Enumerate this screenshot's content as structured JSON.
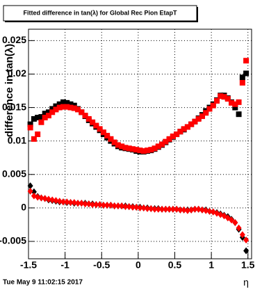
{
  "chart_data": {
    "type": "scatter",
    "title": "Fitted difference in tan(λ) for Global Rec Pion EtapT",
    "y_label": "difference in tan(λ)",
    "x_label": "η",
    "footer": "Tue May  9 11:02:15 2017",
    "xlim": [
      -1.5,
      1.55
    ],
    "ylim": [
      -0.0076,
      0.0267
    ],
    "xticks": [
      -1.5,
      -1,
      -0.5,
      0,
      0.5,
      1,
      1.5
    ],
    "yticks": [
      -0.005,
      0,
      0.005,
      0.01,
      0.015,
      0.02,
      0.025
    ],
    "grid": true,
    "x": [
      -1.475,
      -1.425,
      -1.375,
      -1.325,
      -1.275,
      -1.225,
      -1.175,
      -1.125,
      -1.075,
      -1.025,
      -0.975,
      -0.925,
      -0.875,
      -0.825,
      -0.775,
      -0.725,
      -0.675,
      -0.625,
      -0.575,
      -0.525,
      -0.475,
      -0.425,
      -0.375,
      -0.325,
      -0.275,
      -0.225,
      -0.175,
      -0.125,
      -0.075,
      -0.025,
      0.025,
      0.075,
      0.125,
      0.175,
      0.225,
      0.275,
      0.325,
      0.375,
      0.425,
      0.475,
      0.525,
      0.575,
      0.625,
      0.675,
      0.725,
      0.775,
      0.825,
      0.875,
      0.925,
      0.975,
      1.025,
      1.075,
      1.125,
      1.175,
      1.225,
      1.275,
      1.325,
      1.375,
      1.425,
      1.475
    ],
    "series": [
      {
        "color": "#000000",
        "marker": "square",
        "values": [
          0.0125,
          0.0133,
          0.0135,
          0.0136,
          0.0141,
          0.0143,
          0.0148,
          0.0152,
          0.0155,
          0.0158,
          0.0157,
          0.0155,
          0.0153,
          0.0148,
          0.0143,
          0.0137,
          0.0131,
          0.0126,
          0.0121,
          0.0116,
          0.011,
          0.0105,
          0.01,
          0.0096,
          0.0092,
          0.009,
          0.0089,
          0.0088,
          0.0087,
          0.0085,
          0.0084,
          0.0084,
          0.0085,
          0.0086,
          0.0088,
          0.0091,
          0.0094,
          0.0098,
          0.0102,
          0.0106,
          0.011,
          0.0114,
          0.0117,
          0.0121,
          0.0125,
          0.0129,
          0.0134,
          0.0139,
          0.0145,
          0.015,
          0.0155,
          0.0161,
          0.0168,
          0.0168,
          0.0164,
          0.0158,
          0.015,
          0.014,
          0.0195,
          0.0201
        ]
      },
      {
        "color": "#000000",
        "marker": "diamond",
        "values": [
          0.0033,
          0.0024,
          0.0017,
          0.0015,
          0.0014,
          0.0012,
          0.0011,
          0.001,
          0.0009,
          0.0009,
          0.0008,
          0.0008,
          0.0007,
          0.0007,
          0.0007,
          0.0007,
          0.0006,
          0.0006,
          0.0005,
          0.0005,
          0.0004,
          0.0004,
          0.0004,
          0.0003,
          0.0003,
          0.0003,
          0.0003,
          0.0002,
          0.0002,
          0.0001,
          0.0001,
          0.0,
          0.0,
          -0.0001,
          -0.0001,
          -0.0001,
          -0.0002,
          -0.0002,
          -0.0002,
          -0.0002,
          -0.0002,
          -0.0003,
          -0.0003,
          -0.0003,
          -0.0003,
          -0.0002,
          -0.0002,
          -0.0003,
          -0.0003,
          -0.0005,
          -0.0006,
          -0.0007,
          -0.0009,
          -0.0011,
          -0.0013,
          -0.0017,
          -0.0022,
          -0.0032,
          -0.0044,
          -0.0064
        ]
      },
      {
        "color": "#ff0000",
        "marker": "square",
        "values": [
          0.012,
          0.0103,
          0.011,
          0.0128,
          0.0135,
          0.0138,
          0.0143,
          0.0147,
          0.015,
          0.0151,
          0.0151,
          0.015,
          0.0149,
          0.0147,
          0.0143,
          0.0138,
          0.0133,
          0.0128,
          0.0123,
          0.0118,
          0.0113,
          0.0108,
          0.0103,
          0.0098,
          0.0094,
          0.0092,
          0.009,
          0.0089,
          0.0088,
          0.0087,
          0.0086,
          0.0085,
          0.0086,
          0.0087,
          0.0089,
          0.0092,
          0.0095,
          0.0099,
          0.0103,
          0.0107,
          0.011,
          0.0114,
          0.0118,
          0.0121,
          0.0125,
          0.0129,
          0.0133,
          0.0137,
          0.0142,
          0.0148,
          0.0153,
          0.016,
          0.0167,
          0.0166,
          0.0163,
          0.0157,
          0.0155,
          0.0158,
          0.0187,
          0.022
        ]
      },
      {
        "color": "#ff0000",
        "marker": "diamond",
        "values": [
          0.0025,
          0.0018,
          0.0016,
          0.0015,
          0.0014,
          0.0013,
          0.0012,
          0.0011,
          0.001,
          0.0009,
          0.0009,
          0.0008,
          0.0008,
          0.0007,
          0.0007,
          0.0006,
          0.0006,
          0.0005,
          0.0005,
          0.0005,
          0.0004,
          0.0004,
          0.0004,
          0.0003,
          0.0003,
          0.0003,
          0.0002,
          0.0002,
          0.0001,
          0.0001,
          0.0,
          0.0,
          -0.0001,
          -0.0001,
          -0.0002,
          -0.0002,
          -0.0002,
          -0.0002,
          -0.0002,
          -0.0002,
          -0.0002,
          -0.0003,
          -0.0003,
          -0.0004,
          -0.0003,
          -0.0002,
          -0.0002,
          -0.0003,
          -0.0004,
          -0.0005,
          -0.0006,
          -0.0008,
          -0.001,
          -0.0012,
          -0.0015,
          -0.0018,
          -0.0022,
          -0.003,
          -0.004,
          -0.0048
        ]
      }
    ]
  }
}
